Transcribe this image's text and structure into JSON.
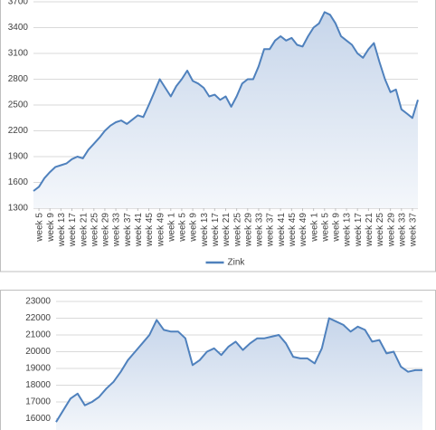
{
  "chart_data": [
    {
      "type": "area",
      "categories": [
        null,
        "week  5",
        null,
        "week  9",
        null,
        "week 13",
        null,
        "week 17",
        null,
        "week 21",
        null,
        "week 25",
        null,
        "week 29",
        null,
        "week 33",
        null,
        "week 37",
        null,
        "week 41",
        null,
        "week 45",
        null,
        "week 49",
        null,
        "week  1",
        null,
        "week  5",
        null,
        "week  9",
        null,
        "week 13",
        null,
        "week 17",
        null,
        "week 21",
        null,
        "week 25",
        null,
        "week 29",
        null,
        "week 33",
        null,
        "week 37",
        null,
        "week 41",
        null,
        "week 45",
        null,
        "week 49",
        null,
        "week  1",
        null,
        "week  5",
        null,
        "week  9",
        null,
        "week 13",
        null,
        "week 17",
        null,
        "week 21",
        null,
        "week 25",
        null,
        "week 29",
        null,
        "week 33",
        null,
        "week 37",
        null
      ],
      "series": [
        {
          "name": "Zink",
          "color": "#4f81bd",
          "values": [
            1500,
            1550,
            1650,
            1720,
            1780,
            1800,
            1820,
            1870,
            1900,
            1880,
            1980,
            2050,
            2120,
            2200,
            2260,
            2300,
            2320,
            2280,
            2330,
            2380,
            2360,
            2500,
            2650,
            2800,
            2700,
            2600,
            2720,
            2800,
            2900,
            2780,
            2750,
            2700,
            2600,
            2620,
            2560,
            2600,
            2480,
            2600,
            2750,
            2800,
            2800,
            2950,
            3150,
            3150,
            3250,
            3300,
            3250,
            3280,
            3200,
            3180,
            3300,
            3400,
            3450,
            3580,
            3550,
            3450,
            3300,
            3250,
            3200,
            3100,
            3050,
            3150,
            3220,
            3000,
            2800,
            2650,
            2680,
            2450,
            2400,
            2350,
            2560
          ]
        }
      ],
      "ylim": [
        1300,
        3700
      ],
      "yticks": [
        1300,
        1600,
        1900,
        2200,
        2500,
        2800,
        3100,
        3400,
        3700
      ],
      "grid": true,
      "legend": "bottom"
    },
    {
      "type": "area",
      "series": [
        {
          "color": "#4f81bd",
          "values": [
            15800,
            16500,
            17200,
            17500,
            16800,
            17000,
            17300,
            17800,
            18200,
            18800,
            19500,
            20000,
            20500,
            21000,
            21900,
            21300,
            21200,
            21200,
            20800,
            19200,
            19500,
            20000,
            20200,
            19800,
            20300,
            20600,
            20100,
            20500,
            20800,
            20800,
            20900,
            21000,
            20500,
            19700,
            19600,
            19600,
            19300,
            20200,
            22000,
            21800,
            21600,
            21200,
            21500,
            21300,
            20600,
            20700,
            19900,
            20000,
            19100,
            18800,
            18900,
            18900
          ]
        }
      ],
      "ylim": [
        15000,
        23000
      ],
      "yticks": [
        16000,
        17000,
        18000,
        19000,
        20000,
        21000,
        22000,
        23000
      ],
      "grid": true
    }
  ]
}
